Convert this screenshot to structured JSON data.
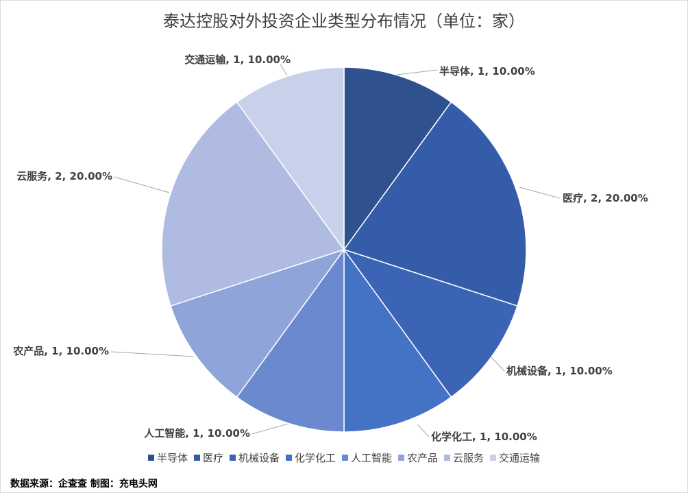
{
  "chart_data": {
    "type": "pie",
    "title": "泰达控股对外投资企业类型分布情况（单位：家）",
    "categories": [
      "半导体",
      "医疗",
      "机械设备",
      "化学化工",
      "人工智能",
      "农产品",
      "云服务",
      "交通运输"
    ],
    "values": [
      1,
      2,
      1,
      1,
      1,
      1,
      2,
      1
    ],
    "percent_labels": [
      "10.00%",
      "20.00%",
      "10.00%",
      "10.00%",
      "10.00%",
      "10.00%",
      "20.00%",
      "10.00%"
    ],
    "colors": [
      "#2F528F",
      "#355CA8",
      "#3C64B5",
      "#4472C4",
      "#6A89CF",
      "#8FA4D8",
      "#AFBBE1",
      "#C9D0EA"
    ],
    "start_angle": "top",
    "direction": "clockwise",
    "legend_position": "bottom"
  },
  "footer": "数据来源：企查查  制图：充电头网"
}
